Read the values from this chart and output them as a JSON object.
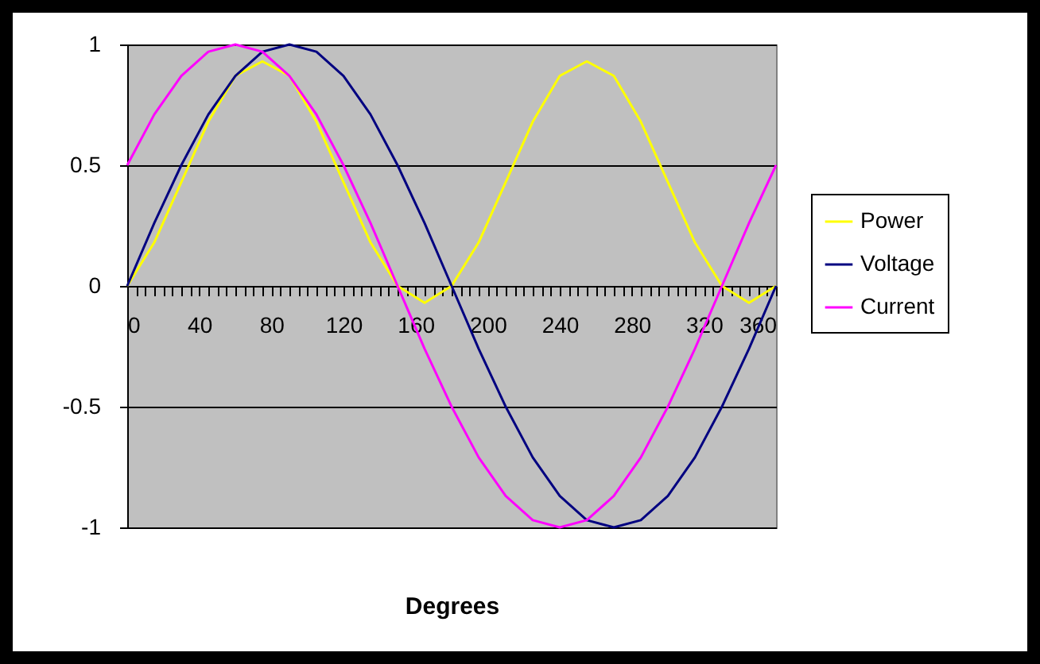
{
  "chart_data": {
    "type": "line",
    "xlabel": "Degrees",
    "x": [
      0,
      15,
      30,
      45,
      60,
      75,
      90,
      105,
      120,
      135,
      150,
      165,
      180,
      195,
      210,
      225,
      240,
      255,
      270,
      285,
      300,
      315,
      330,
      345,
      360
    ],
    "series": [
      {
        "name": "Power",
        "color": "#ffff00",
        "values": [
          0,
          0.18,
          0.43,
          0.68,
          0.87,
          0.93,
          0.87,
          0.68,
          0.43,
          0.18,
          0,
          -0.07,
          0,
          0.18,
          0.43,
          0.68,
          0.87,
          0.93,
          0.87,
          0.68,
          0.43,
          0.18,
          0,
          -0.07,
          0
        ]
      },
      {
        "name": "Voltage",
        "color": "#000080",
        "values": [
          0,
          0.26,
          0.5,
          0.71,
          0.87,
          0.97,
          1,
          0.97,
          0.87,
          0.71,
          0.5,
          0.26,
          0,
          -0.26,
          -0.5,
          -0.71,
          -0.87,
          -0.97,
          -1,
          -0.97,
          -0.87,
          -0.71,
          -0.5,
          -0.26,
          0
        ]
      },
      {
        "name": "Current",
        "color": "#ff00ff",
        "values": [
          0.5,
          0.71,
          0.87,
          0.97,
          1,
          0.97,
          0.87,
          0.71,
          0.5,
          0.26,
          0,
          -0.26,
          -0.5,
          -0.71,
          -0.87,
          -0.97,
          -1,
          -0.97,
          -0.87,
          -0.71,
          -0.5,
          -0.26,
          0,
          0.26,
          0.5
        ]
      }
    ],
    "xlim": [
      0,
      360
    ],
    "xticks": [
      0,
      {
        "value": 5,
        "label": null
      },
      {
        "value": 10,
        "label": null
      },
      {
        "value": 15,
        "label": null
      },
      {
        "value": 20,
        "label": null
      },
      {
        "value": 25,
        "label": null
      },
      {
        "value": 30,
        "label": null
      },
      {
        "value": 35,
        "label": null
      },
      40,
      {
        "value": 45,
        "label": null
      },
      {
        "value": 50,
        "label": null
      },
      {
        "value": 55,
        "label": null
      },
      {
        "value": 60,
        "label": null
      },
      {
        "value": 65,
        "label": null
      },
      {
        "value": 70,
        "label": null
      },
      {
        "value": 75,
        "label": null
      },
      80,
      {
        "value": 85,
        "label": null
      },
      {
        "value": 90,
        "label": null
      },
      {
        "value": 95,
        "label": null
      },
      {
        "value": 100,
        "label": null
      },
      {
        "value": 105,
        "label": null
      },
      {
        "value": 110,
        "label": null
      },
      {
        "value": 115,
        "label": null
      },
      120,
      {
        "value": 125,
        "label": null
      },
      {
        "value": 130,
        "label": null
      },
      {
        "value": 135,
        "label": null
      },
      {
        "value": 140,
        "label": null
      },
      {
        "value": 145,
        "label": null
      },
      {
        "value": 150,
        "label": null
      },
      {
        "value": 155,
        "label": null
      },
      160,
      {
        "value": 165,
        "label": null
      },
      {
        "value": 170,
        "label": null
      },
      {
        "value": 175,
        "label": null
      },
      {
        "value": 180,
        "label": null
      },
      {
        "value": 185,
        "label": null
      },
      {
        "value": 190,
        "label": null
      },
      {
        "value": 195,
        "label": null
      },
      200,
      {
        "value": 205,
        "label": null
      },
      {
        "value": 210,
        "label": null
      },
      {
        "value": 215,
        "label": null
      },
      {
        "value": 220,
        "label": null
      },
      {
        "value": 225,
        "label": null
      },
      {
        "value": 230,
        "label": null
      },
      {
        "value": 235,
        "label": null
      },
      240,
      {
        "value": 245,
        "label": null
      },
      {
        "value": 250,
        "label": null
      },
      {
        "value": 255,
        "label": null
      },
      {
        "value": 260,
        "label": null
      },
      {
        "value": 265,
        "label": null
      },
      {
        "value": 270,
        "label": null
      },
      {
        "value": 275,
        "label": null
      },
      280,
      {
        "value": 285,
        "label": null
      },
      {
        "value": 290,
        "label": null
      },
      {
        "value": 295,
        "label": null
      },
      {
        "value": 300,
        "label": null
      },
      {
        "value": 305,
        "label": null
      },
      {
        "value": 310,
        "label": null
      },
      {
        "value": 315,
        "label": null
      },
      320,
      {
        "value": 325,
        "label": null
      },
      {
        "value": 330,
        "label": null
      },
      {
        "value": 335,
        "label": null
      },
      {
        "value": 340,
        "label": null
      },
      {
        "value": 345,
        "label": null
      },
      {
        "value": 350,
        "label": null
      },
      {
        "value": 355,
        "label": null
      },
      360
    ],
    "ylim": [
      -1,
      1
    ],
    "yticks": [
      -1,
      -0.5,
      0,
      0.5,
      1
    ],
    "grid": "y",
    "legend": "right",
    "line_style": "solid",
    "marker": "none"
  }
}
